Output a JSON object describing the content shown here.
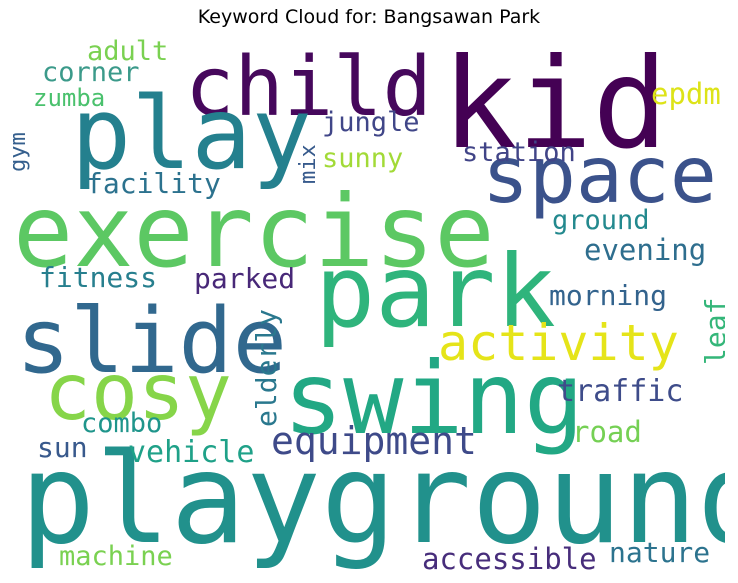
{
  "title": "Keyword Cloud for: Bangsawan Park",
  "words": [
    {
      "text": "kid",
      "color": "#440154"
    },
    {
      "text": "child",
      "color": "#46085c"
    },
    {
      "text": "play",
      "color": "#24808e"
    },
    {
      "text": "space",
      "color": "#3b528b"
    },
    {
      "text": "exercise",
      "color": "#5cc863"
    },
    {
      "text": "park",
      "color": "#2fb47c"
    },
    {
      "text": "slide",
      "color": "#31688e"
    },
    {
      "text": "swing",
      "color": "#22a884"
    },
    {
      "text": "cosy",
      "color": "#86d549"
    },
    {
      "text": "activity",
      "color": "#e5e419"
    },
    {
      "text": "playground",
      "color": "#21918c"
    },
    {
      "text": "equipment",
      "color": "#3e4a89"
    },
    {
      "text": "adult",
      "color": "#7ad151"
    },
    {
      "text": "corner",
      "color": "#3b9a8a"
    },
    {
      "text": "zumba",
      "color": "#4ac16d"
    },
    {
      "text": "gym",
      "color": "#355f8d"
    },
    {
      "text": "facility",
      "color": "#2c728e"
    },
    {
      "text": "mix",
      "color": "#375a8c"
    },
    {
      "text": "jungle",
      "color": "#404688"
    },
    {
      "text": "sunny",
      "color": "#a2da37"
    },
    {
      "text": "station",
      "color": "#414487"
    },
    {
      "text": "epdm",
      "color": "#dde318"
    },
    {
      "text": "ground",
      "color": "#23898e"
    },
    {
      "text": "evening",
      "color": "#2e6e8e"
    },
    {
      "text": "fitness",
      "color": "#277f8e"
    },
    {
      "text": "parked",
      "color": "#482878"
    },
    {
      "text": "morning",
      "color": "#33638d"
    },
    {
      "text": "leaf",
      "color": "#34b679"
    },
    {
      "text": "elderly",
      "color": "#2a788e"
    },
    {
      "text": "traffic",
      "color": "#3e4c8a"
    },
    {
      "text": "road",
      "color": "#75d054"
    },
    {
      "text": "combo",
      "color": "#1f958b"
    },
    {
      "text": "sun",
      "color": "#38598c"
    },
    {
      "text": "vehicle",
      "color": "#1fa188"
    },
    {
      "text": "machine",
      "color": "#7ad151"
    },
    {
      "text": "accessible",
      "color": "#472d7b"
    },
    {
      "text": "nature",
      "color": "#2c738e"
    }
  ]
}
